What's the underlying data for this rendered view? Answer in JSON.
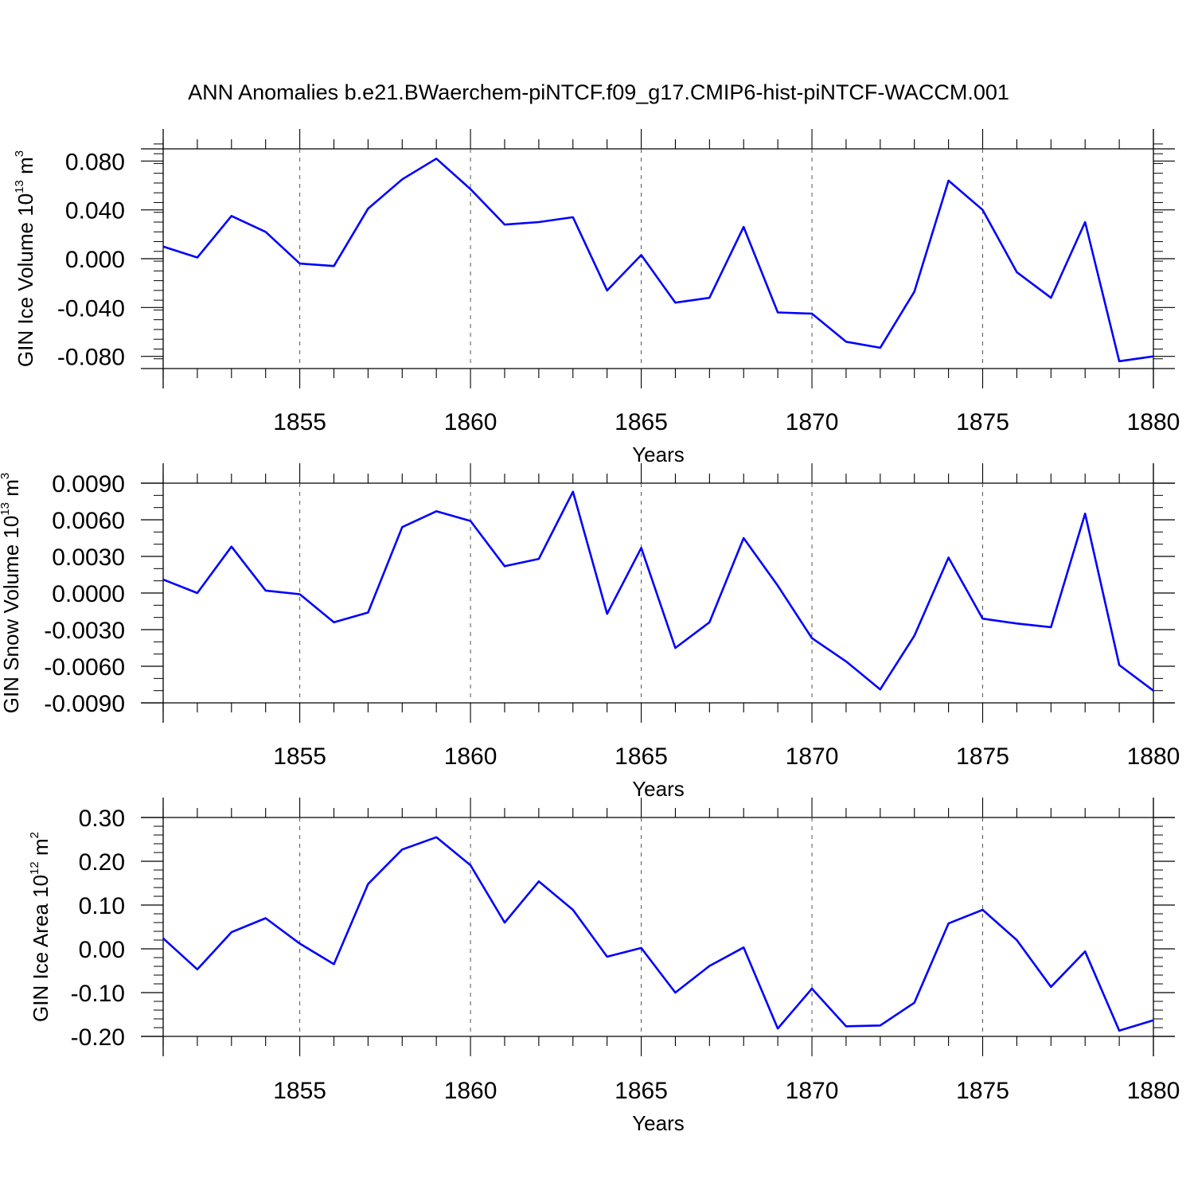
{
  "title": "ANN Anomalies b.e21.BWaerchem-piNTCF.f09_g17.CMIP6-hist-piNTCF-WACCM.001",
  "colors": {
    "line": "#0000ff",
    "axis": "#000000",
    "grid": "#555555"
  },
  "chart_data": [
    {
      "type": "line",
      "ylabel": {
        "text": "GIN Ice Volume 10",
        "exp": "13",
        "unit": " m",
        "unit_exp": "3"
      },
      "xlabel": "Years",
      "xlim": [
        1851,
        1880
      ],
      "ylim": [
        -0.09,
        0.09
      ],
      "yticks": [
        -0.08,
        -0.04,
        0.0,
        0.04,
        0.08
      ],
      "ytick_labels": [
        "-0.080",
        "-0.040",
        "0.000",
        "0.040",
        "0.080"
      ],
      "yminor_step": 0.008,
      "xticks": [
        1855,
        1860,
        1865,
        1870,
        1875,
        1880
      ],
      "xtick_labels": [
        "1855",
        "1860",
        "1865",
        "1870",
        "1875",
        "1880"
      ],
      "grid": "vertical dashed at major x ticks",
      "x": [
        1851,
        1852,
        1853,
        1854,
        1855,
        1856,
        1857,
        1858,
        1859,
        1860,
        1861,
        1862,
        1863,
        1864,
        1865,
        1866,
        1867,
        1868,
        1869,
        1870,
        1871,
        1872,
        1873,
        1874,
        1875,
        1876,
        1877,
        1878,
        1879,
        1880
      ],
      "series": [
        {
          "name": "GIN Ice Volume",
          "values": [
            0.01,
            0.001,
            0.035,
            0.022,
            -0.004,
            -0.006,
            0.041,
            0.065,
            0.082,
            0.057,
            0.028,
            0.03,
            0.034,
            -0.026,
            0.003,
            -0.036,
            -0.032,
            0.026,
            -0.044,
            -0.045,
            -0.068,
            -0.073,
            -0.027,
            0.064,
            0.04,
            -0.011,
            -0.032,
            0.03,
            -0.084,
            -0.08
          ]
        }
      ]
    },
    {
      "type": "line",
      "ylabel": {
        "text": "GIN Snow Volume 10",
        "exp": "13",
        "unit": " m",
        "unit_exp": "3"
      },
      "xlabel": "Years",
      "xlim": [
        1851,
        1880
      ],
      "ylim": [
        -0.009,
        0.009
      ],
      "yticks": [
        -0.009,
        -0.006,
        -0.003,
        0.0,
        0.003,
        0.006,
        0.009
      ],
      "ytick_labels": [
        "-0.0090",
        "-0.0060",
        "-0.0030",
        "0.0000",
        "0.0030",
        "0.0060",
        "0.0090"
      ],
      "yminor_step": 0.001,
      "xticks": [
        1855,
        1860,
        1865,
        1870,
        1875,
        1880
      ],
      "xtick_labels": [
        "1855",
        "1860",
        "1865",
        "1870",
        "1875",
        "1880"
      ],
      "grid": "vertical dashed at major x ticks",
      "x": [
        1851,
        1852,
        1853,
        1854,
        1855,
        1856,
        1857,
        1858,
        1859,
        1860,
        1861,
        1862,
        1863,
        1864,
        1865,
        1866,
        1867,
        1868,
        1869,
        1870,
        1871,
        1872,
        1873,
        1874,
        1875,
        1876,
        1877,
        1878,
        1879,
        1880
      ],
      "series": [
        {
          "name": "GIN Snow Volume",
          "values": [
            0.0011,
            0.0,
            0.0038,
            0.0002,
            -0.0001,
            -0.0024,
            -0.0016,
            0.0054,
            0.0067,
            0.0059,
            0.0022,
            0.0028,
            0.0083,
            -0.0017,
            0.0037,
            -0.0045,
            -0.0024,
            0.0045,
            0.0006,
            -0.0037,
            -0.0056,
            -0.0079,
            -0.0035,
            0.0029,
            -0.0021,
            -0.0025,
            -0.0028,
            0.0065,
            -0.0059,
            -0.008
          ]
        }
      ]
    },
    {
      "type": "line",
      "ylabel": {
        "text": "GIN Ice Area 10",
        "exp": "12",
        "unit": " m",
        "unit_exp": "2"
      },
      "xlabel": "Years",
      "xlim": [
        1851,
        1880
      ],
      "ylim": [
        -0.2,
        0.3
      ],
      "yticks": [
        -0.2,
        -0.1,
        0.0,
        0.1,
        0.2,
        0.3
      ],
      "ytick_labels": [
        "-0.20",
        "-0.10",
        "0.00",
        "0.10",
        "0.20",
        "0.30"
      ],
      "yminor_step": 0.02,
      "xticks": [
        1855,
        1860,
        1865,
        1870,
        1875,
        1880
      ],
      "xtick_labels": [
        "1855",
        "1860",
        "1865",
        "1870",
        "1875",
        "1880"
      ],
      "grid": "vertical dashed at major x ticks",
      "x": [
        1851,
        1852,
        1853,
        1854,
        1855,
        1856,
        1857,
        1858,
        1859,
        1860,
        1861,
        1862,
        1863,
        1864,
        1865,
        1866,
        1867,
        1868,
        1869,
        1870,
        1871,
        1872,
        1873,
        1874,
        1875,
        1876,
        1877,
        1878,
        1879,
        1880
      ],
      "series": [
        {
          "name": "GIN Ice Area",
          "values": [
            0.024,
            -0.047,
            0.038,
            0.07,
            0.012,
            -0.035,
            0.148,
            0.227,
            0.255,
            0.191,
            0.06,
            0.154,
            0.089,
            -0.018,
            0.002,
            -0.1,
            -0.039,
            0.003,
            -0.182,
            -0.091,
            -0.177,
            -0.175,
            -0.123,
            0.058,
            0.089,
            0.02,
            -0.087,
            -0.006,
            -0.187,
            -0.163
          ]
        }
      ]
    }
  ]
}
